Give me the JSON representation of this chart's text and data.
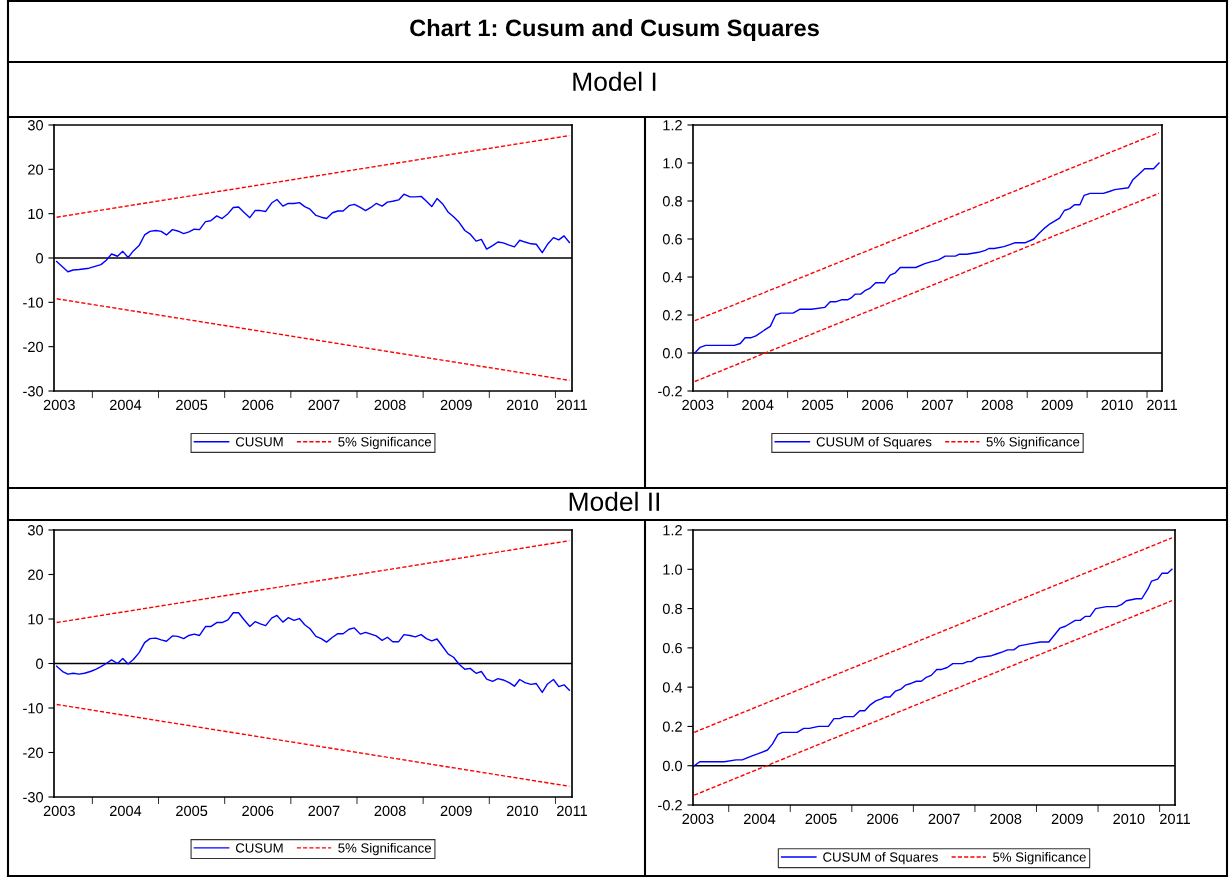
{
  "chart_data": [
    {
      "type": "line",
      "title": "Chart 1: Cusum and Cusum Squares",
      "subtitle": "Model I",
      "legend": "bottom",
      "xlim": [
        2003.42,
        2011.25
      ],
      "xticks": [
        {
          "value": 2003.5,
          "label": "2003"
        },
        {
          "value": 2004,
          "label": null
        },
        {
          "value": 2004.5,
          "label": "2004"
        },
        {
          "value": 2005,
          "label": null
        },
        {
          "value": 2005.5,
          "label": "2005"
        },
        {
          "value": 2006,
          "label": null
        },
        {
          "value": 2006.5,
          "label": "2006"
        },
        {
          "value": 2007,
          "label": null
        },
        {
          "value": 2007.5,
          "label": "2007"
        },
        {
          "value": 2008,
          "label": null
        },
        {
          "value": 2008.5,
          "label": "2008"
        },
        {
          "value": 2009,
          "label": null
        },
        {
          "value": 2009.5,
          "label": "2009"
        },
        {
          "value": 2010,
          "label": null
        },
        {
          "value": 2010.5,
          "label": "2010"
        },
        {
          "value": 2011,
          "label": null
        },
        {
          "value": 2011.25,
          "label": "2011"
        }
      ],
      "ylim": [
        -30,
        30
      ],
      "yticks": [
        -30,
        -20,
        -10,
        0,
        10,
        20,
        30
      ],
      "ref_lines": [
        {
          "axis": "y",
          "value": 0,
          "color": "#000000"
        }
      ],
      "series": [
        {
          "name": "CUSUM",
          "color": "#0000ff",
          "line_style": "solid",
          "x": [
            2003.46,
            2003.63,
            2003.71,
            2003.8,
            2003.95,
            2004.13,
            2004.21,
            2004.29,
            2004.38,
            2004.46,
            2004.54,
            2004.62,
            2004.71,
            2004.79,
            2004.87,
            2004.96,
            2005.04,
            2005.12,
            2005.21,
            2005.29,
            2005.38,
            2005.46,
            2005.54,
            2005.62,
            2005.71,
            2005.79,
            2005.88,
            2005.96,
            2006.05,
            2006.13,
            2006.21,
            2006.29,
            2006.38,
            2006.46,
            2006.54,
            2006.62,
            2006.71,
            2006.79,
            2006.88,
            2006.96,
            2007.05,
            2007.13,
            2007.21,
            2007.29,
            2007.38,
            2007.46,
            2007.54,
            2007.63,
            2007.71,
            2007.79,
            2007.88,
            2007.96,
            2008.05,
            2008.13,
            2008.21,
            2008.29,
            2008.38,
            2008.46,
            2008.54,
            2008.63,
            2008.71,
            2008.8,
            2008.88,
            2008.97,
            2009.05,
            2009.13,
            2009.21,
            2009.3,
            2009.38,
            2009.46,
            2009.54,
            2009.63,
            2009.71,
            2009.8,
            2009.88,
            2009.96,
            2010.05,
            2010.13,
            2010.21,
            2010.3,
            2010.38,
            2010.46,
            2010.54,
            2010.63,
            2010.71,
            2010.8,
            2010.88,
            2010.97,
            2011.05,
            2011.13,
            2011.21
          ],
          "values": [
            -0.8,
            -3.1,
            -2.7,
            -2.6,
            -2.3,
            -1.5,
            -0.5,
            0.9,
            0.4,
            1.5,
            0.1,
            1.6,
            2.9,
            5.2,
            6.0,
            6.2,
            6.0,
            5.2,
            6.4,
            6.1,
            5.5,
            5.9,
            6.5,
            6.4,
            8.2,
            8.4,
            9.5,
            8.9,
            10.0,
            11.4,
            11.5,
            10.3,
            9.1,
            10.7,
            10.7,
            10.5,
            12.4,
            13.2,
            11.7,
            12.3,
            12.3,
            12.5,
            11.6,
            11.0,
            9.6,
            9.2,
            8.9,
            10.2,
            10.6,
            10.6,
            11.8,
            12.1,
            11.4,
            10.7,
            11.4,
            12.3,
            11.7,
            12.6,
            12.8,
            13.1,
            14.4,
            13.8,
            13.8,
            13.9,
            12.8,
            11.6,
            13.4,
            12.1,
            10.3,
            9.3,
            8.1,
            6.2,
            5.4,
            3.8,
            4.2,
            2.0,
            2.8,
            3.6,
            3.4,
            2.9,
            2.5,
            4.0,
            3.6,
            3.2,
            3.1,
            1.2,
            3.1,
            4.6,
            4.1,
            5.0,
            3.5
          ]
        },
        {
          "name": "5% Significance",
          "color": "#ff0000",
          "line_style": "dashed",
          "x": [
            2003.46,
            2011.21
          ],
          "values": [
            9.2,
            27.6
          ]
        },
        {
          "color": "#ff0000",
          "line_style": "dashed",
          "x": [
            2003.46,
            2011.21
          ],
          "values": [
            -9.2,
            -27.6
          ]
        }
      ]
    },
    {
      "type": "line",
      "legend": "bottom",
      "xlim": [
        2003.42,
        2011.25
      ],
      "xticks": [
        {
          "value": 2003.5,
          "label": "2003"
        },
        {
          "value": 2004,
          "label": null
        },
        {
          "value": 2004.5,
          "label": "2004"
        },
        {
          "value": 2005,
          "label": null
        },
        {
          "value": 2005.5,
          "label": "2005"
        },
        {
          "value": 2006,
          "label": null
        },
        {
          "value": 2006.5,
          "label": "2006"
        },
        {
          "value": 2007,
          "label": null
        },
        {
          "value": 2007.5,
          "label": "2007"
        },
        {
          "value": 2008,
          "label": null
        },
        {
          "value": 2008.5,
          "label": "2008"
        },
        {
          "value": 2009,
          "label": null
        },
        {
          "value": 2009.5,
          "label": "2009"
        },
        {
          "value": 2010,
          "label": null
        },
        {
          "value": 2010.5,
          "label": "2010"
        },
        {
          "value": 2011,
          "label": null
        },
        {
          "value": 2011.25,
          "label": "2011"
        }
      ],
      "ylim": [
        -0.2,
        1.2
      ],
      "yticks": [
        {
          "value": -0.2,
          "label": "-0.2"
        },
        {
          "value": 0,
          "label": "0.0"
        },
        {
          "value": 0.2,
          "label": "0.2"
        },
        {
          "value": 0.4,
          "label": "0.4"
        },
        {
          "value": 0.6,
          "label": "0.6"
        },
        {
          "value": 0.8,
          "label": "0.8"
        },
        {
          "value": 1.0,
          "label": "1.0"
        },
        {
          "value": 1.2,
          "label": "1.2"
        }
      ],
      "ref_lines": [
        {
          "axis": "y",
          "value": 0,
          "color": "#000000"
        }
      ],
      "series": [
        {
          "name": "CUSUM of Squares",
          "color": "#0000ff",
          "line_style": "solid",
          "x": [
            2003.45,
            2003.54,
            2003.63,
            2003.82,
            2004.01,
            2004.11,
            2004.21,
            2004.29,
            2004.38,
            2004.47,
            2004.61,
            2004.71,
            2004.8,
            2004.89,
            2005.09,
            2005.2,
            2005.3,
            2005.4,
            2005.62,
            2005.71,
            2005.81,
            2005.9,
            2006.0,
            2006.06,
            2006.13,
            2006.22,
            2006.3,
            2006.37,
            2006.47,
            2006.62,
            2006.71,
            2006.79,
            2006.88,
            2006.97,
            2007.14,
            2007.29,
            2007.39,
            2007.52,
            2007.63,
            2007.8,
            2007.87,
            2007.99,
            2008.19,
            2008.3,
            2008.36,
            2008.45,
            2008.61,
            2008.71,
            2008.79,
            2008.96,
            2009.11,
            2009.2,
            2009.3,
            2009.38,
            2009.54,
            2009.62,
            2009.71,
            2009.79,
            2009.88,
            2009.95,
            2010.05,
            2010.12,
            2010.27,
            2010.37,
            2010.46,
            2010.69,
            2010.76,
            2010.86,
            2010.96,
            2011.11,
            2011.2
          ],
          "values": [
            0.0,
            0.03,
            0.04,
            0.04,
            0.04,
            0.04,
            0.05,
            0.08,
            0.08,
            0.09,
            0.12,
            0.14,
            0.2,
            0.21,
            0.21,
            0.23,
            0.23,
            0.23,
            0.24,
            0.27,
            0.27,
            0.28,
            0.28,
            0.29,
            0.31,
            0.31,
            0.33,
            0.34,
            0.37,
            0.37,
            0.41,
            0.42,
            0.45,
            0.45,
            0.45,
            0.47,
            0.48,
            0.49,
            0.51,
            0.51,
            0.52,
            0.52,
            0.53,
            0.54,
            0.55,
            0.55,
            0.56,
            0.57,
            0.58,
            0.58,
            0.6,
            0.63,
            0.66,
            0.68,
            0.71,
            0.75,
            0.76,
            0.78,
            0.78,
            0.83,
            0.84,
            0.84,
            0.84,
            0.85,
            0.86,
            0.87,
            0.91,
            0.94,
            0.97,
            0.97,
            1.0
          ]
        },
        {
          "name": "5% Significance",
          "color": "#ff0000",
          "line_style": "dashed",
          "x": [
            2003.45,
            2011.2
          ],
          "values": [
            0.17,
            1.16
          ]
        },
        {
          "color": "#ff0000",
          "line_style": "dashed",
          "x": [
            2003.45,
            2011.2
          ],
          "values": [
            -0.15,
            0.84
          ]
        }
      ]
    },
    {
      "type": "line",
      "subtitle": "Model II",
      "legend": "bottom",
      "xlim": [
        2003.42,
        2011.25
      ],
      "xticks": [
        {
          "value": 2003.5,
          "label": "2003"
        },
        {
          "value": 2004,
          "label": null
        },
        {
          "value": 2004.5,
          "label": "2004"
        },
        {
          "value": 2005,
          "label": null
        },
        {
          "value": 2005.5,
          "label": "2005"
        },
        {
          "value": 2006,
          "label": null
        },
        {
          "value": 2006.5,
          "label": "2006"
        },
        {
          "value": 2007,
          "label": null
        },
        {
          "value": 2007.5,
          "label": "2007"
        },
        {
          "value": 2008,
          "label": null
        },
        {
          "value": 2008.5,
          "label": "2008"
        },
        {
          "value": 2009,
          "label": null
        },
        {
          "value": 2009.5,
          "label": "2009"
        },
        {
          "value": 2010,
          "label": null
        },
        {
          "value": 2010.5,
          "label": "2010"
        },
        {
          "value": 2011,
          "label": null
        },
        {
          "value": 2011.25,
          "label": "2011"
        }
      ],
      "ylim": [
        -30,
        30
      ],
      "yticks": [
        -30,
        -20,
        -10,
        0,
        10,
        20,
        30
      ],
      "ref_lines": [
        {
          "axis": "y",
          "value": 0,
          "color": "#000000"
        }
      ],
      "series": [
        {
          "name": "CUSUM",
          "color": "#0000ff",
          "line_style": "solid",
          "x": [
            2003.46,
            2003.55,
            2003.63,
            2003.71,
            2003.8,
            2003.88,
            2003.97,
            2004.05,
            2004.13,
            2004.21,
            2004.29,
            2004.38,
            2004.46,
            2004.54,
            2004.62,
            2004.71,
            2004.79,
            2004.87,
            2004.96,
            2005.04,
            2005.12,
            2005.21,
            2005.29,
            2005.38,
            2005.46,
            2005.54,
            2005.62,
            2005.71,
            2005.79,
            2005.88,
            2005.96,
            2006.05,
            2006.13,
            2006.21,
            2006.29,
            2006.38,
            2006.46,
            2006.54,
            2006.62,
            2006.71,
            2006.79,
            2006.88,
            2006.96,
            2007.05,
            2007.13,
            2007.21,
            2007.29,
            2007.38,
            2007.46,
            2007.54,
            2007.63,
            2007.71,
            2007.79,
            2007.88,
            2007.96,
            2008.05,
            2008.13,
            2008.21,
            2008.29,
            2008.38,
            2008.46,
            2008.54,
            2008.63,
            2008.71,
            2008.8,
            2008.88,
            2008.97,
            2009.05,
            2009.13,
            2009.21,
            2009.3,
            2009.38,
            2009.46,
            2009.54,
            2009.63,
            2009.71,
            2009.8,
            2009.88,
            2009.96,
            2010.05,
            2010.13,
            2010.21,
            2010.3,
            2010.38,
            2010.46,
            2010.54,
            2010.63,
            2010.71,
            2010.8,
            2010.88,
            2010.97,
            2011.05,
            2011.13,
            2011.21
          ],
          "values": [
            -0.6,
            -1.8,
            -2.4,
            -2.2,
            -2.4,
            -2.2,
            -1.8,
            -1.3,
            -0.7,
            0.0,
            0.8,
            0.0,
            1.1,
            -0.1,
            0.9,
            2.5,
            4.7,
            5.6,
            5.7,
            5.3,
            5.0,
            6.2,
            6.1,
            5.6,
            6.3,
            6.6,
            6.3,
            8.3,
            8.3,
            9.2,
            9.2,
            9.8,
            11.4,
            11.4,
            9.9,
            8.3,
            9.4,
            8.9,
            8.5,
            10.2,
            10.8,
            9.3,
            10.3,
            9.7,
            10.1,
            8.7,
            7.8,
            6.1,
            5.6,
            4.8,
            5.9,
            6.7,
            6.7,
            7.7,
            8.0,
            6.6,
            7.0,
            6.6,
            6.2,
            5.2,
            5.9,
            4.9,
            4.9,
            6.5,
            6.3,
            6.0,
            6.5,
            5.6,
            5.1,
            5.5,
            3.7,
            2.1,
            1.4,
            -0.1,
            -1.3,
            -1.1,
            -2.2,
            -1.8,
            -3.5,
            -4.0,
            -3.4,
            -3.7,
            -4.3,
            -5.1,
            -3.6,
            -4.3,
            -4.7,
            -4.5,
            -6.5,
            -4.6,
            -3.6,
            -5.2,
            -4.8,
            -6.0
          ]
        },
        {
          "name": "5% Significance",
          "color": "#ff0000",
          "line_style": "dashed",
          "x": [
            2003.46,
            2011.21
          ],
          "values": [
            9.2,
            27.6
          ]
        },
        {
          "color": "#ff0000",
          "line_style": "dashed",
          "x": [
            2003.46,
            2011.21
          ],
          "values": [
            -9.2,
            -27.6
          ]
        }
      ]
    },
    {
      "type": "line",
      "legend": "bottom",
      "xlim": [
        2003.42,
        2011.25
      ],
      "xticks": [
        {
          "value": 2003.5,
          "label": "2003"
        },
        {
          "value": 2004,
          "label": null
        },
        {
          "value": 2004.5,
          "label": "2004"
        },
        {
          "value": 2005,
          "label": null
        },
        {
          "value": 2005.5,
          "label": "2005"
        },
        {
          "value": 2006,
          "label": null
        },
        {
          "value": 2006.5,
          "label": "2006"
        },
        {
          "value": 2007,
          "label": null
        },
        {
          "value": 2007.5,
          "label": "2007"
        },
        {
          "value": 2008,
          "label": null
        },
        {
          "value": 2008.5,
          "label": "2008"
        },
        {
          "value": 2009,
          "label": null
        },
        {
          "value": 2009.5,
          "label": "2009"
        },
        {
          "value": 2010,
          "label": null
        },
        {
          "value": 2010.5,
          "label": "2010"
        },
        {
          "value": 2011,
          "label": null
        },
        {
          "value": 2011.25,
          "label": "2011"
        }
      ],
      "ylim": [
        -0.2,
        1.2
      ],
      "yticks": [
        {
          "value": -0.2,
          "label": "-0.2"
        },
        {
          "value": 0,
          "label": "0.0"
        },
        {
          "value": 0.2,
          "label": "0.2"
        },
        {
          "value": 0.4,
          "label": "0.4"
        },
        {
          "value": 0.6,
          "label": "0.6"
        },
        {
          "value": 0.8,
          "label": "0.8"
        },
        {
          "value": 1.0,
          "label": "1.0"
        },
        {
          "value": 1.2,
          "label": "1.2"
        }
      ],
      "ref_lines": [
        {
          "axis": "y",
          "value": 0,
          "color": "#000000"
        }
      ],
      "series": [
        {
          "name": "CUSUM of Squares",
          "color": "#0000ff",
          "line_style": "solid",
          "x": [
            2003.44,
            2003.53,
            2003.63,
            2003.93,
            2004.12,
            2004.22,
            2004.3,
            2004.38,
            2004.47,
            2004.63,
            2004.71,
            2004.8,
            2004.87,
            2005.11,
            2005.22,
            2005.31,
            2005.46,
            2005.62,
            2005.71,
            2005.8,
            2005.88,
            2006.03,
            2006.13,
            2006.21,
            2006.3,
            2006.39,
            2006.48,
            2006.54,
            2006.62,
            2006.71,
            2006.8,
            2006.87,
            2006.97,
            2007.05,
            2007.13,
            2007.21,
            2007.29,
            2007.38,
            2007.46,
            2007.55,
            2007.64,
            2007.71,
            2007.8,
            2007.88,
            2007.94,
            2008.04,
            2008.27,
            2008.36,
            2008.45,
            2008.53,
            2008.63,
            2008.72,
            2008.89,
            2009.06,
            2009.2,
            2009.38,
            2009.47,
            2009.63,
            2009.71,
            2009.79,
            2009.87,
            2009.96,
            2010.14,
            2010.3,
            2010.38,
            2010.46,
            2010.62,
            2010.71,
            2010.81,
            2010.87,
            2010.97,
            2011.04,
            2011.13,
            2011.2
          ],
          "values": [
            0.0,
            0.02,
            0.02,
            0.02,
            0.03,
            0.03,
            0.04,
            0.05,
            0.06,
            0.08,
            0.11,
            0.16,
            0.17,
            0.17,
            0.19,
            0.19,
            0.2,
            0.2,
            0.24,
            0.24,
            0.25,
            0.25,
            0.28,
            0.28,
            0.31,
            0.33,
            0.34,
            0.35,
            0.35,
            0.38,
            0.39,
            0.41,
            0.42,
            0.43,
            0.43,
            0.45,
            0.46,
            0.49,
            0.49,
            0.5,
            0.52,
            0.52,
            0.52,
            0.53,
            0.53,
            0.55,
            0.56,
            0.57,
            0.58,
            0.59,
            0.59,
            0.61,
            0.62,
            0.63,
            0.63,
            0.7,
            0.71,
            0.74,
            0.74,
            0.76,
            0.76,
            0.8,
            0.81,
            0.81,
            0.82,
            0.84,
            0.85,
            0.85,
            0.9,
            0.94,
            0.95,
            0.98,
            0.98,
            1.0
          ]
        },
        {
          "name": "5% Significance",
          "color": "#ff0000",
          "line_style": "dashed",
          "x": [
            2003.44,
            2011.2
          ],
          "values": [
            0.17,
            1.16
          ]
        },
        {
          "color": "#ff0000",
          "line_style": "dashed",
          "x": [
            2003.44,
            2011.2
          ],
          "values": [
            -0.15,
            0.84
          ]
        }
      ]
    }
  ]
}
